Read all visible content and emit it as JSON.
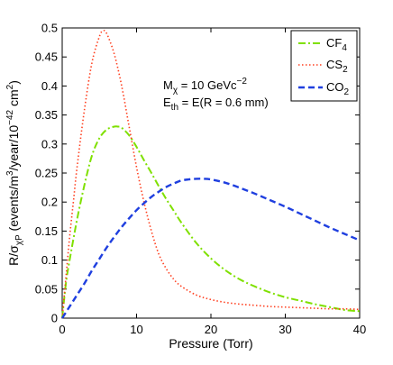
{
  "chart_data": {
    "type": "line",
    "xlabel": "Pressure (Torr)",
    "ylabel_parts": {
      "r": "R/σ",
      "sub": "χP",
      "mid": " (events/m",
      "sup1": "3",
      "mid2": "/year/10",
      "sup2": "−42",
      "mid3": " cm",
      "sup3": "2",
      "end": ")"
    },
    "xlim": [
      0,
      40
    ],
    "ylim": [
      0,
      0.5
    ],
    "x_ticks": [
      0,
      10,
      20,
      30,
      40
    ],
    "x_tick_labels": [
      "0",
      "10",
      "20",
      "30",
      "40"
    ],
    "y_ticks": [
      0,
      0.05,
      0.1,
      0.15,
      0.2,
      0.25,
      0.3,
      0.35,
      0.4,
      0.45,
      0.5
    ],
    "y_tick_labels": [
      "0",
      "0.05",
      "0.1",
      "0.15",
      "0.2",
      "0.25",
      "0.3",
      "0.35",
      "0.4",
      "0.45",
      "0.5"
    ],
    "grid": false,
    "legend_position": "top-right",
    "annotations": {
      "line1": {
        "main": "M",
        "sub": "χ",
        "rest": " = 10 GeVc",
        "sup": "−2"
      },
      "line2": {
        "main": "E",
        "sub": "th",
        "rest": " = E(R = 0.6 mm)"
      }
    },
    "series": [
      {
        "name": "CF4",
        "name_main": "CF",
        "name_sub": "4",
        "color": "#7fe000",
        "dash": "dashdot",
        "x": [
          0,
          0.5,
          1,
          2,
          3,
          4,
          5,
          6,
          7,
          7.5,
          8,
          9,
          10,
          11,
          12,
          13,
          14,
          15,
          16,
          18,
          20,
          22,
          24,
          26,
          28,
          30,
          32,
          34,
          36,
          38,
          40
        ],
        "y": [
          0,
          0.06,
          0.1,
          0.17,
          0.23,
          0.28,
          0.31,
          0.325,
          0.33,
          0.33,
          0.328,
          0.315,
          0.295,
          0.272,
          0.25,
          0.227,
          0.205,
          0.185,
          0.165,
          0.13,
          0.103,
          0.082,
          0.066,
          0.054,
          0.044,
          0.036,
          0.03,
          0.024,
          0.019,
          0.014,
          0.012
        ]
      },
      {
        "name": "CS2",
        "name_main": "CS",
        "name_sub": "2",
        "color": "#ff4020",
        "dash": "dotted",
        "x": [
          0,
          0.5,
          1,
          1.5,
          2,
          3,
          4,
          5,
          5.5,
          6,
          7,
          8,
          9,
          10,
          11,
          12,
          13,
          14,
          15,
          16,
          18,
          20,
          22,
          24,
          26,
          28,
          30,
          32,
          34,
          36,
          38,
          40
        ],
        "y": [
          0,
          0.07,
          0.14,
          0.2,
          0.26,
          0.36,
          0.44,
          0.485,
          0.495,
          0.49,
          0.455,
          0.4,
          0.33,
          0.26,
          0.2,
          0.15,
          0.11,
          0.085,
          0.067,
          0.055,
          0.04,
          0.032,
          0.027,
          0.024,
          0.022,
          0.02,
          0.019,
          0.018,
          0.017,
          0.016,
          0.016,
          0.015
        ]
      },
      {
        "name": "CO2",
        "name_main": "CO",
        "name_sub": "2",
        "color": "#1f3fdf",
        "dash": "dashed",
        "x": [
          0,
          1,
          2,
          3,
          4,
          5,
          6,
          7,
          8,
          9,
          10,
          11,
          12,
          13,
          14,
          15,
          16,
          17,
          18,
          19,
          20,
          22,
          24,
          26,
          28,
          30,
          32,
          34,
          36,
          38,
          40
        ],
        "y": [
          0,
          0.02,
          0.04,
          0.06,
          0.082,
          0.102,
          0.122,
          0.14,
          0.157,
          0.172,
          0.186,
          0.198,
          0.209,
          0.218,
          0.226,
          0.232,
          0.237,
          0.239,
          0.24,
          0.24,
          0.239,
          0.233,
          0.224,
          0.214,
          0.203,
          0.192,
          0.18,
          0.168,
          0.156,
          0.145,
          0.134
        ]
      }
    ]
  }
}
